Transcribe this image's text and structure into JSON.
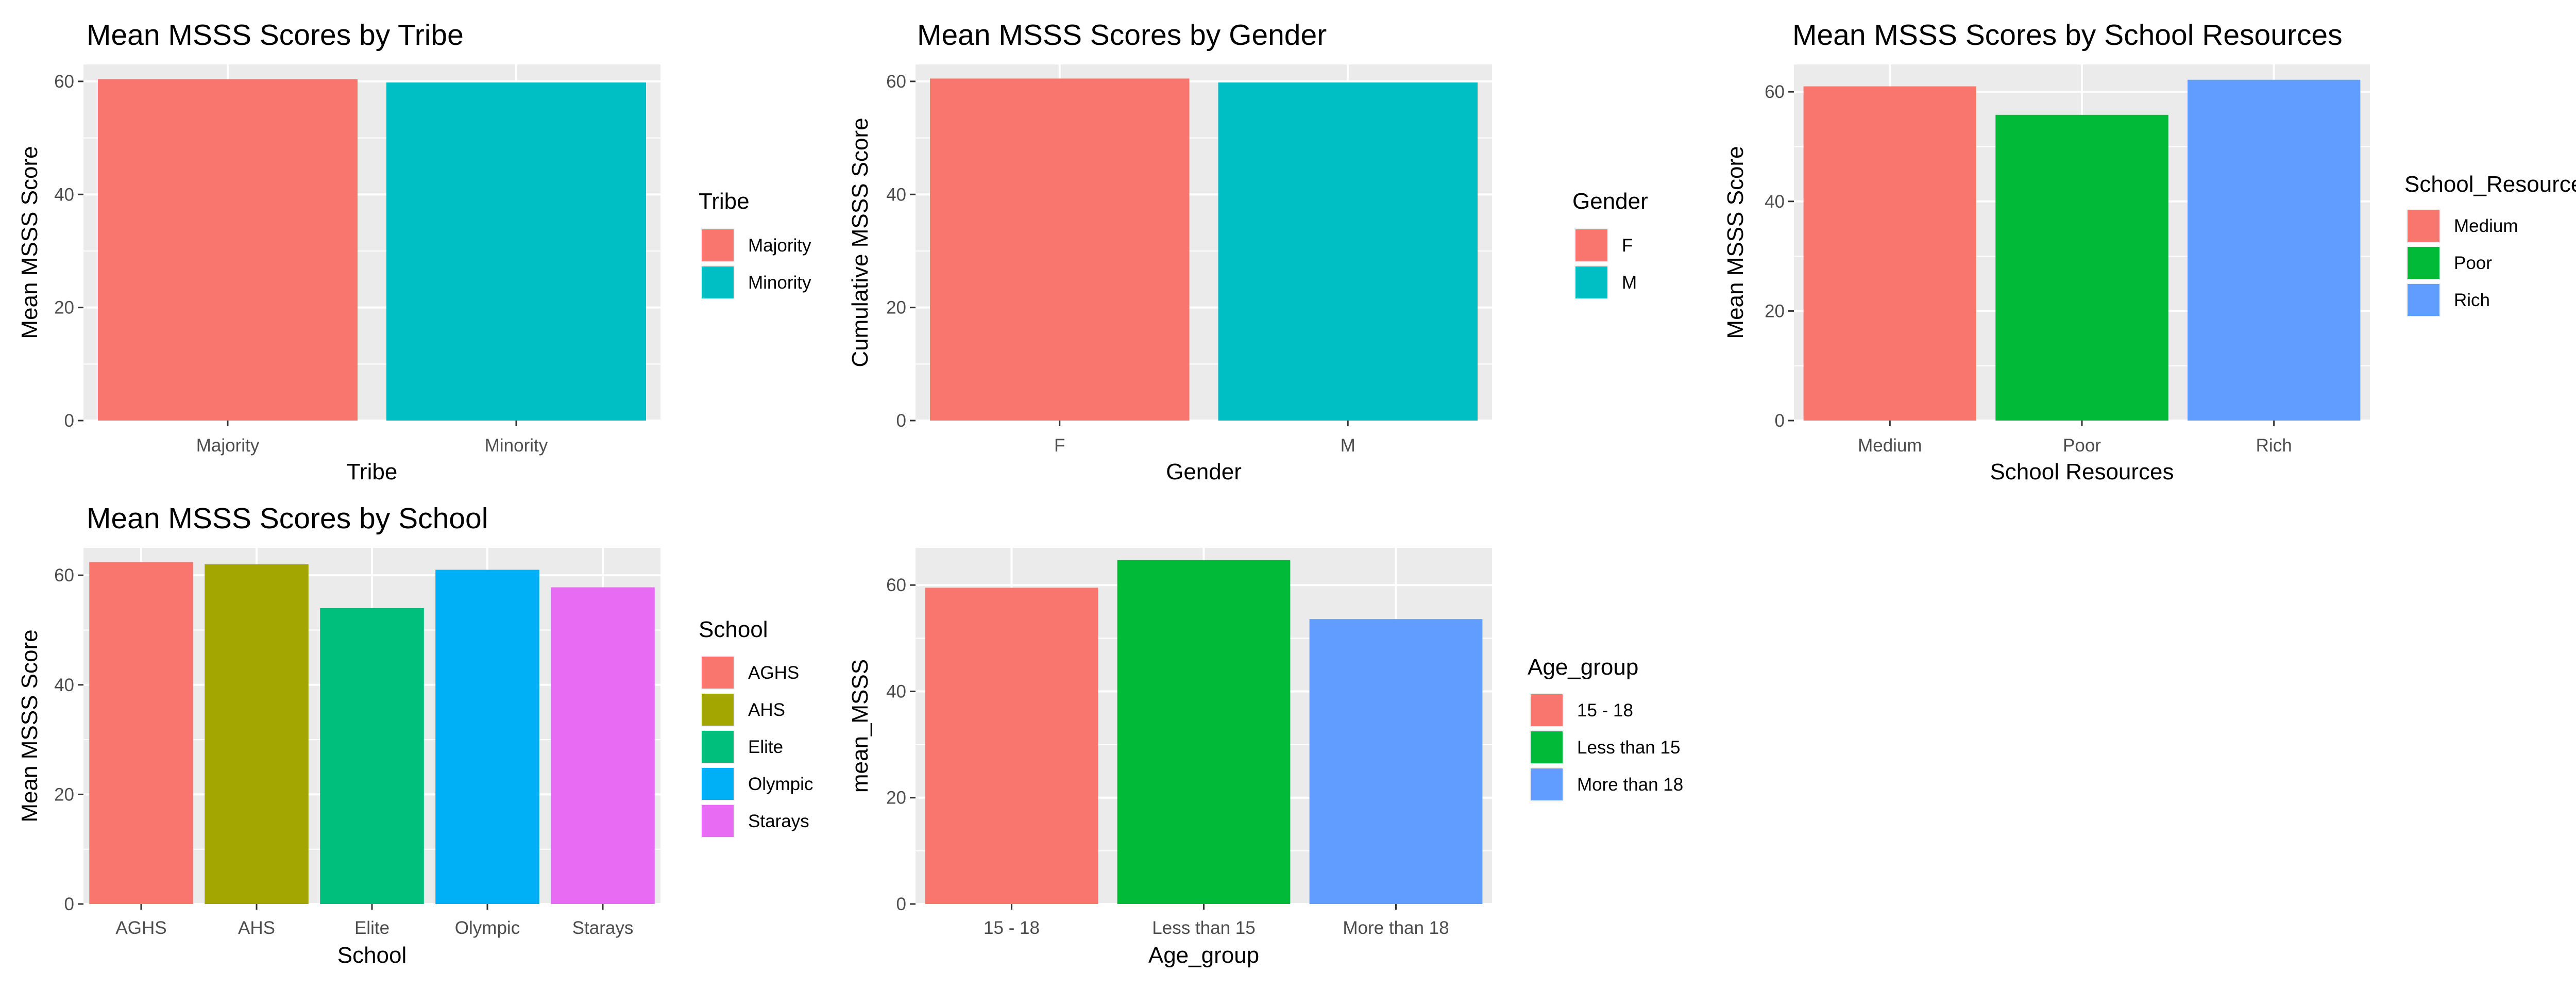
{
  "chart_data": [
    {
      "type": "bar",
      "title": "Mean MSSS Scores by Tribe",
      "xlabel": "Tribe",
      "ylabel": "Mean MSSS Score",
      "categories": [
        "Majority",
        "Minority"
      ],
      "values": [
        60.4,
        59.8
      ],
      "colors": [
        "#F8766D",
        "#00BFC4"
      ],
      "ylim": [
        0,
        63
      ],
      "yticks": [
        0,
        20,
        40,
        60
      ],
      "legend_title": "Tribe",
      "legend_entries": [
        "Majority",
        "Minority"
      ],
      "legend": "right",
      "grid": true
    },
    {
      "type": "bar",
      "title": "Mean MSSS Scores by Gender",
      "xlabel": "Gender",
      "ylabel": "Cumulative MSSS Score",
      "categories": [
        "F",
        "M"
      ],
      "values": [
        60.5,
        59.8
      ],
      "colors": [
        "#F8766D",
        "#00BFC4"
      ],
      "ylim": [
        0,
        63
      ],
      "yticks": [
        0,
        20,
        40,
        60
      ],
      "legend_title": "Gender",
      "legend_entries": [
        "F",
        "M"
      ],
      "legend": "right",
      "grid": true
    },
    {
      "type": "bar",
      "title": "Mean MSSS Scores by School Resources",
      "xlabel": "School Resources",
      "ylabel": "Mean MSSS Score",
      "categories": [
        "Medium",
        "Poor",
        "Rich"
      ],
      "values": [
        61.0,
        55.8,
        62.2
      ],
      "colors": [
        "#F8766D",
        "#00BA38",
        "#619CFF"
      ],
      "ylim": [
        0,
        65
      ],
      "yticks": [
        0,
        20,
        40,
        60
      ],
      "legend_title": "School_Resources",
      "legend_entries": [
        "Medium",
        "Poor",
        "Rich"
      ],
      "legend": "right",
      "grid": true
    },
    {
      "type": "bar",
      "title": "Mean MSSS Scores by School",
      "xlabel": "School",
      "ylabel": "Mean MSSS Score",
      "categories": [
        "AGHS",
        "AHS",
        "Elite",
        "Olympic",
        "Starays"
      ],
      "values": [
        62.4,
        62.0,
        54.0,
        61.0,
        57.8
      ],
      "colors": [
        "#F8766D",
        "#A3A500",
        "#00BF7D",
        "#00B0F6",
        "#E76BF3"
      ],
      "ylim": [
        0,
        65
      ],
      "yticks": [
        0,
        20,
        40,
        60
      ],
      "legend_title": "School",
      "legend_entries": [
        "AGHS",
        "AHS",
        "Elite",
        "Olympic",
        "Starays"
      ],
      "legend": "right",
      "grid": true
    },
    {
      "type": "bar",
      "title": "",
      "xlabel": "Age_group",
      "ylabel": "mean_MSSS",
      "categories": [
        "15 - 18",
        "Less than 15",
        "More than 18"
      ],
      "values": [
        59.5,
        64.7,
        53.6
      ],
      "colors": [
        "#F8766D",
        "#00BA38",
        "#619CFF"
      ],
      "ylim": [
        0,
        67
      ],
      "yticks": [
        0,
        20,
        40,
        60
      ],
      "legend_title": "Age_group",
      "legend_entries": [
        "15 - 18",
        "Less than 15",
        "More than 18"
      ],
      "legend": "right",
      "grid": true
    }
  ]
}
